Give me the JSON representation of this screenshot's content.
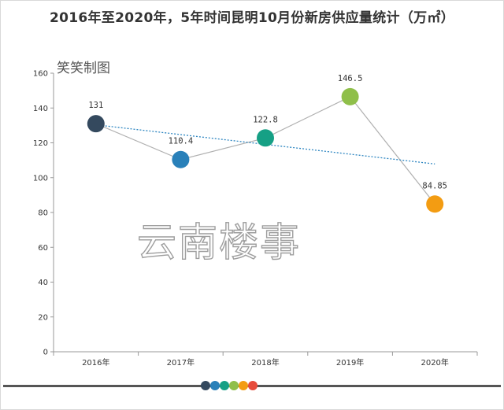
{
  "chart_data": {
    "type": "line",
    "title": "2016年至2020年，5年时间昆明10月份新房供应量统计（万㎡）",
    "categories": [
      "2016年",
      "2017年",
      "2018年",
      "2019年",
      "2020年"
    ],
    "series": [
      {
        "values": [
          131,
          110.4,
          122.8,
          146.5,
          84.85
        ]
      }
    ],
    "data_labels": [
      "131",
      "110.4",
      "122.8",
      "146.5",
      "84.85"
    ],
    "point_colors": [
      "#34495e",
      "#2980b9",
      "#16a085",
      "#8fbf4a",
      "#f39c12"
    ],
    "trendline": {
      "type": "linear",
      "color": "#2e86c1",
      "style": "dotted"
    },
    "line_color": "#b0b0b0",
    "ylim": [
      0,
      160
    ],
    "yticks": [
      0,
      20,
      40,
      60,
      80,
      100,
      120,
      140,
      160
    ],
    "grid": false,
    "legend": "none"
  },
  "watermark": {
    "small": "笑笑制图",
    "big": "云南楼事"
  },
  "footer": {
    "dot_colors": [
      "#34495e",
      "#2980b9",
      "#16a085",
      "#8fbf4a",
      "#f39c12",
      "#e74c3c"
    ]
  }
}
